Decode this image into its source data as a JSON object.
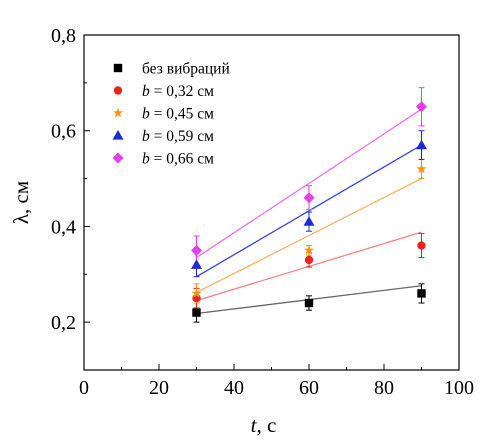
{
  "chart_data": {
    "type": "scatter",
    "title": "",
    "xlabel": {
      "var": "t",
      "unit": ", с"
    },
    "ylabel": "λ, см",
    "xlim": [
      0,
      100
    ],
    "ylim": [
      0.1,
      0.8
    ],
    "x_ticks": [
      "0",
      "20",
      "40",
      "60",
      "80",
      "100"
    ],
    "y_ticks": [
      "0,2",
      "0,4",
      "0,6",
      "0,8"
    ],
    "grid": false,
    "legend_position": "top-left",
    "x": [
      30,
      60,
      90
    ],
    "series": [
      {
        "legend_prefix": "",
        "legend_var": "",
        "legend_text": "без вибраций",
        "marker": "square",
        "color": "#000000",
        "line_color": "#666666",
        "values": [
          0.22,
          0.24,
          0.26
        ],
        "errors": [
          0.02,
          0.015,
          0.02
        ],
        "fit": [
          0.218,
          0.276
        ]
      },
      {
        "legend_prefix": "",
        "legend_var": "b",
        "legend_text": " = 0,32 см",
        "marker": "circle",
        "color": "#e8231c",
        "line_color": "#f08585",
        "values": [
          0.25,
          0.33,
          0.36
        ],
        "errors": [
          0.02,
          0.015,
          0.025
        ],
        "fit": [
          0.245,
          0.388
        ]
      },
      {
        "legend_prefix": "",
        "legend_var": "b",
        "legend_text": " = 0,45 см",
        "marker": "star",
        "color": "#f5951e",
        "line_color": "#f5b46a",
        "values": [
          0.26,
          0.35,
          0.52
        ],
        "errors": [
          0.02,
          0.01,
          0.02
        ],
        "fit": [
          0.262,
          0.5
        ]
      },
      {
        "legend_prefix": "",
        "legend_var": "b",
        "legend_text": " = 0,59 см",
        "marker": "triangle",
        "color": "#1d2bd6",
        "line_color": "#3a44d6",
        "values": [
          0.32,
          0.41,
          0.57
        ],
        "errors": [
          0.025,
          0.02,
          0.03
        ],
        "fit": [
          0.295,
          0.57
        ]
      },
      {
        "legend_prefix": "",
        "legend_var": "b",
        "legend_text": " = 0,66 см",
        "marker": "diamond",
        "color": "#e53ff0",
        "line_color": "#ea70f2",
        "values": [
          0.35,
          0.46,
          0.65
        ],
        "errors": [
          0.03,
          0.025,
          0.04
        ],
        "fit": [
          0.335,
          0.645
        ]
      }
    ]
  }
}
